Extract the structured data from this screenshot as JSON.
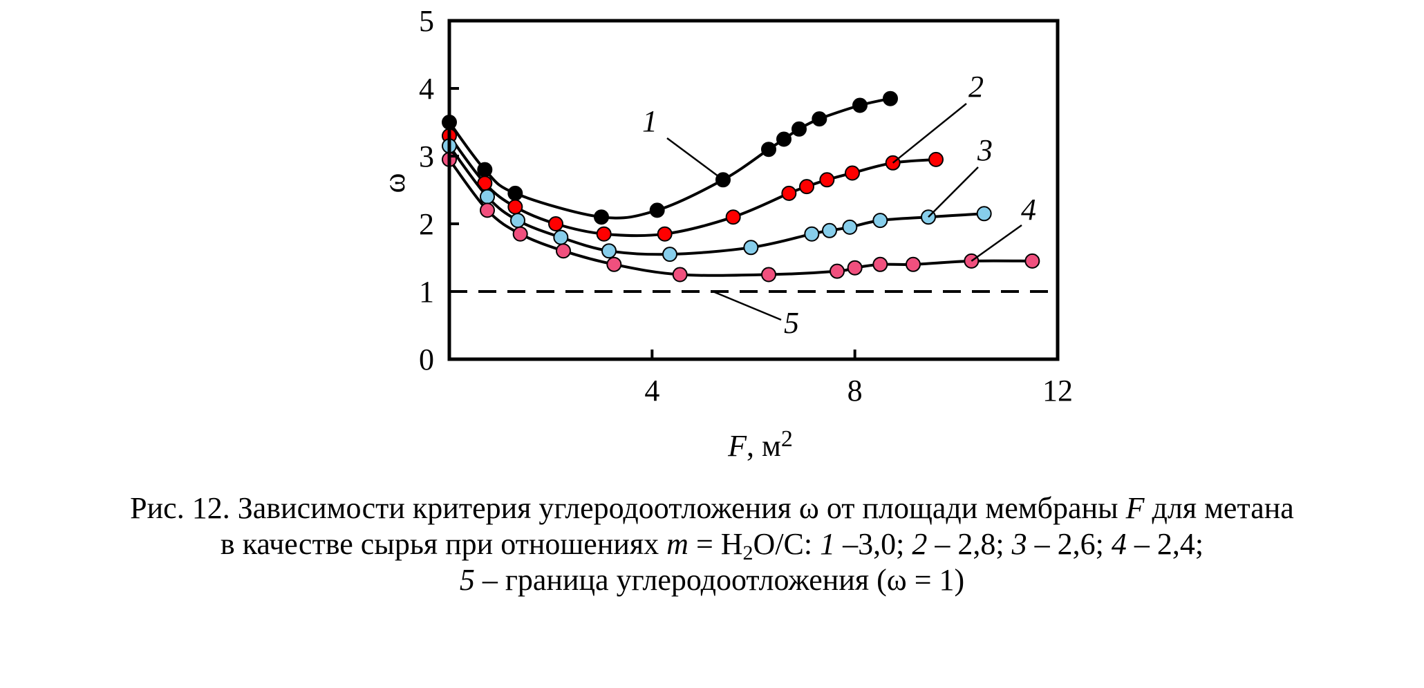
{
  "chart_data": {
    "type": "line",
    "xlabel": "F",
    "xlabel_unit": "м",
    "xlabel_unit_exp": "2",
    "ylabel": "ω",
    "xlim": [
      0,
      12
    ],
    "ylim": [
      0,
      5
    ],
    "xticks": [
      "4",
      "8",
      "12"
    ],
    "yticks": [
      "0",
      "1",
      "2",
      "3",
      "4",
      "5"
    ],
    "grid": false,
    "colors": {
      "1": "#000000",
      "2": "#ff0000",
      "3": "#87ceeb",
      "4": "#f0507e"
    },
    "series": [
      {
        "name": "1",
        "label": "1",
        "color": "#000000",
        "x": [
          0.0,
          0.7,
          1.3,
          3.0,
          4.1,
          5.4,
          6.3,
          6.6,
          6.9,
          7.3,
          8.1,
          8.7
        ],
        "y": [
          3.5,
          2.8,
          2.45,
          2.1,
          2.2,
          2.65,
          3.1,
          3.25,
          3.4,
          3.55,
          3.75,
          3.85
        ]
      },
      {
        "name": "2",
        "label": "2",
        "color": "#ff0000",
        "x": [
          0.0,
          0.7,
          1.3,
          2.1,
          3.05,
          4.25,
          5.6,
          6.7,
          7.05,
          7.45,
          7.95,
          8.75,
          9.6
        ],
        "y": [
          3.3,
          2.6,
          2.25,
          2.0,
          1.85,
          1.85,
          2.1,
          2.45,
          2.55,
          2.65,
          2.75,
          2.9,
          2.95
        ]
      },
      {
        "name": "3",
        "label": "3",
        "color": "#87ceeb",
        "x": [
          0.0,
          0.75,
          1.35,
          2.2,
          3.15,
          4.35,
          5.95,
          7.15,
          7.5,
          7.9,
          8.5,
          9.45,
          10.55
        ],
        "y": [
          3.15,
          2.4,
          2.05,
          1.8,
          1.6,
          1.55,
          1.65,
          1.85,
          1.9,
          1.95,
          2.05,
          2.1,
          2.15
        ]
      },
      {
        "name": "4",
        "label": "4",
        "color": "#f0507e",
        "x": [
          0.0,
          0.75,
          1.4,
          2.25,
          3.25,
          4.55,
          6.3,
          7.65,
          8.0,
          8.5,
          9.15,
          10.3,
          11.5
        ],
        "y": [
          2.95,
          2.2,
          1.85,
          1.6,
          1.4,
          1.25,
          1.25,
          1.3,
          1.35,
          1.4,
          1.4,
          1.45,
          1.45
        ]
      }
    ],
    "boundary": {
      "name": "5",
      "label": "5",
      "y": 1
    }
  },
  "caption": {
    "line1_a": "Рис. 12. Зависимости критерия углеродоотложения ω от площади мембраны ",
    "line1_f": "F",
    "line1_b": " для метана",
    "line2_a": "в качестве сырья при отношениях ",
    "line2_m": "m",
    "line2_b": " = H",
    "line2_sub": "2",
    "line2_c": "O/C: ",
    "line2_n1": "1",
    "line2_v1": " –3,0; ",
    "line2_n2": "2",
    "line2_v2": " – 2,8; ",
    "line2_n3": "3",
    "line2_v3": " – 2,6; ",
    "line2_n4": "4",
    "line2_v4": " – 2,4;",
    "line3_n5": "5",
    "line3_text": " – граница углеродоотложения (ω = 1)"
  }
}
